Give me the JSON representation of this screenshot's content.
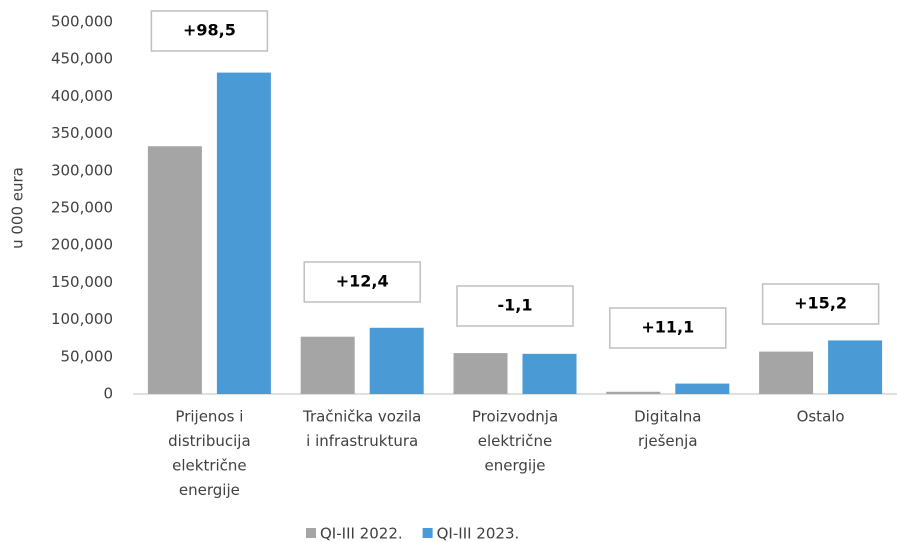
{
  "chart_data": {
    "type": "bar",
    "y_label": "u 000 eura",
    "categories": [
      [
        "Prijenos i",
        "distribucija",
        "električne",
        "energije"
      ],
      [
        "Tračnička vozila",
        "i infrastruktura"
      ],
      [
        "Proizvodnja",
        "električne",
        "energije"
      ],
      [
        "Digitalna",
        "rješenja"
      ],
      [
        "Ostalo"
      ]
    ],
    "series": [
      {
        "name": "QI-III 2022.",
        "color": "#a5a5a5",
        "values": [
          333000,
          77000,
          55000,
          3000,
          57000
        ]
      },
      {
        "name": "QI-III 2023.",
        "color": "#4a9ad6",
        "values": [
          432000,
          89000,
          54000,
          14000,
          72000
        ]
      }
    ],
    "annotations": [
      "+98,5",
      "+12,4",
      "-1,1",
      "+11,1",
      "+15,2"
    ],
    "ylim": [
      0,
      500000
    ],
    "yticks": [
      0,
      {
        "value": 50000,
        "label": "50,000"
      },
      {
        "value": 100000,
        "label": "100,000"
      },
      {
        "value": 150000,
        "label": "150,000"
      },
      {
        "value": 200000,
        "label": "200,000"
      },
      {
        "value": 250000,
        "label": "250,000"
      },
      {
        "value": 300000,
        "label": "300,000"
      },
      {
        "value": 350000,
        "label": "350,000"
      },
      {
        "value": 400000,
        "label": "400,000"
      },
      {
        "value": 450000,
        "label": "450,000"
      },
      {
        "value": 500000,
        "label": "500,000"
      }
    ],
    "grid": false,
    "legend": "bottom"
  }
}
